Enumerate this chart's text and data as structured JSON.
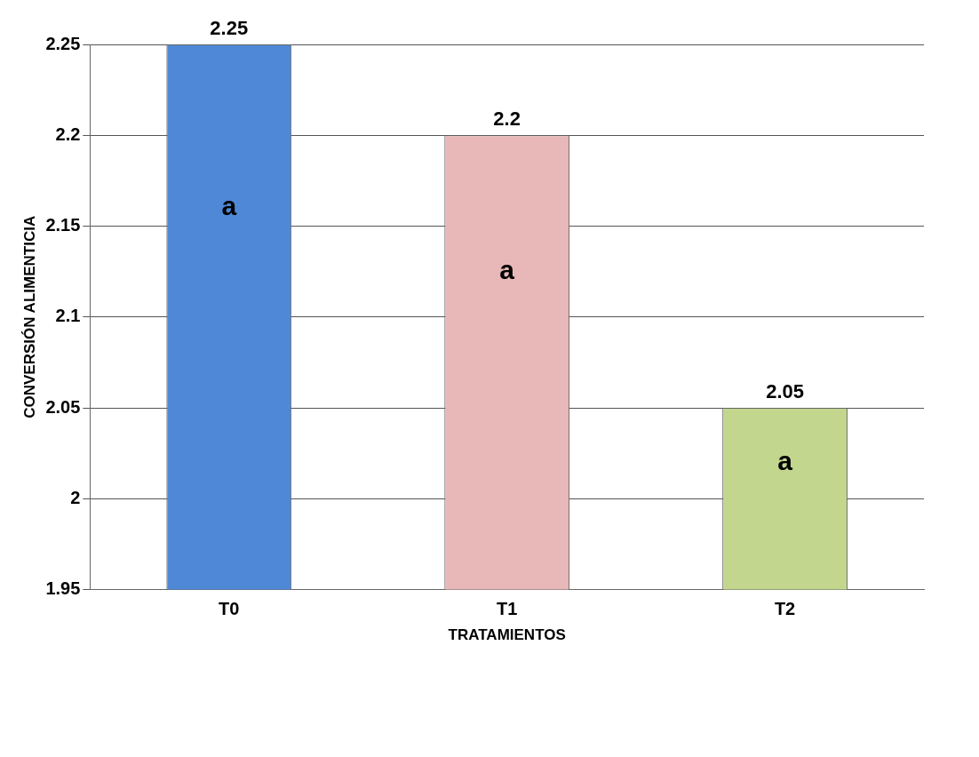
{
  "chart_data": {
    "type": "bar",
    "xlabel": "TRATAMIENTOS",
    "ylabel": "CONVERSIÓN ALIMENTICIA",
    "categories": [
      "T0",
      "T1",
      "T2"
    ],
    "values": [
      2.25,
      2.2,
      2.05
    ],
    "colors": [
      "#4f88d6",
      "#e8b7b7",
      "#c2d68e"
    ],
    "ylim": [
      1.95,
      2.25
    ],
    "yticks": [
      1.95,
      2,
      2.05,
      2.1,
      2.15,
      2.2,
      2.25
    ],
    "grid": "y",
    "legend": false,
    "data_labels": true,
    "annotations": [
      "a",
      "a",
      "a"
    ]
  }
}
